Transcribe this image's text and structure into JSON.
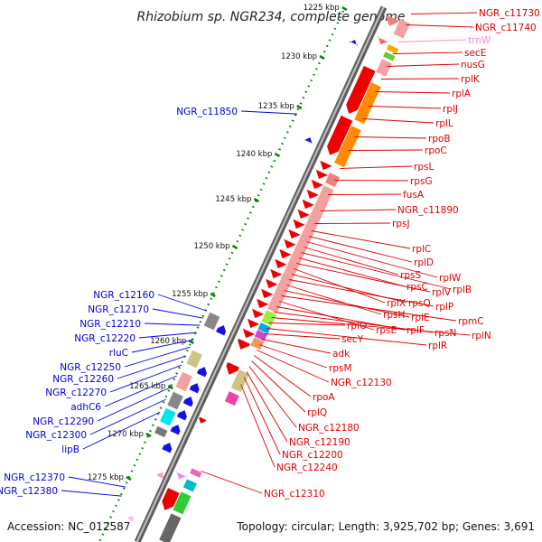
{
  "title": "Rhizobium sp. NGR234, complete genome",
  "footer": {
    "accession": "Accession: NC_012587",
    "topology": "Topology: circular; Length: 3,925,702 bp; Genes: 3,691"
  },
  "colors": {
    "red_label": "#dd0000",
    "blue_label": "#0000dd",
    "trna_label": "#ff88cc",
    "backbone": "#808080",
    "tick_dots": "#008800"
  },
  "ticks": [
    {
      "label": "1225 kbp"
    },
    {
      "label": "1230 kbp"
    },
    {
      "label": "1235 kbp"
    },
    {
      "label": "1240 kbp"
    },
    {
      "label": "1245 kbp"
    },
    {
      "label": "1250 kbp"
    },
    {
      "label": "1255 kbp"
    },
    {
      "label": "1260 kbp"
    },
    {
      "label": "1265 kbp"
    },
    {
      "label": "1270 kbp"
    },
    {
      "label": "1275 kbp"
    }
  ],
  "right_labels": [
    "NGR_c11730",
    "NGR_c11740",
    "trnW",
    "secE",
    "nusG",
    "rplK",
    "rplA",
    "rplJ",
    "rplL",
    "rpoB",
    "rpoC",
    "rpsL",
    "rpsG",
    "fusA",
    "NGR_c11890",
    "rpsJ",
    "rplC",
    "rplD",
    "rplW",
    "rpsS",
    "rplB",
    "rpsC",
    "rplV",
    "rplX",
    "rpsQ",
    "rplP",
    "rpsH",
    "rplE",
    "rpmC",
    "rpsE",
    "rplF",
    "rpsN",
    "rplN",
    "rplO",
    "rplR",
    "secY",
    "adk",
    "rpsM",
    "NGR_c12130",
    "rpoA",
    "rplQ",
    "NGR_c12180",
    "NGR_c12190",
    "NGR_c12200",
    "NGR_c12240",
    "NGR_c12310"
  ],
  "left_labels": [
    "NGR_c11850",
    "NGR_c12160",
    "NGR_c12170",
    "NGR_c12210",
    "NGR_c12220",
    "rluC",
    "NGR_c12250",
    "NGR_c12260",
    "NGR_c12270",
    "adhC6",
    "NGR_c12290",
    "NGR_c12300",
    "lipB",
    "NGR_c12370",
    "NGR_c12380"
  ]
}
